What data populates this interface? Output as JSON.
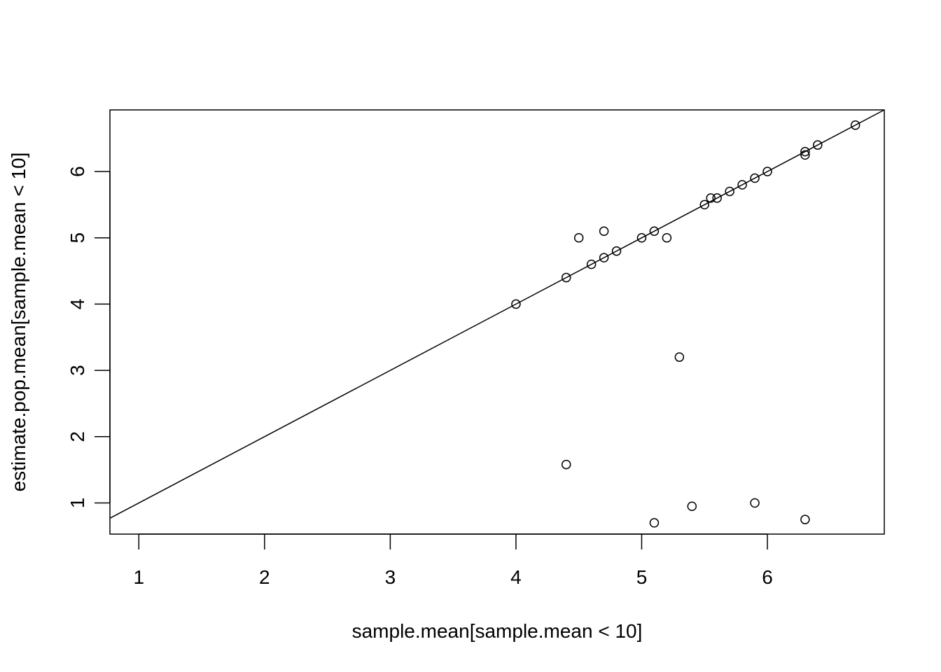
{
  "chart_data": {
    "type": "scatter",
    "title": "",
    "xlabel": "sample.mean[sample.mean < 10]",
    "ylabel": "estimate.pop.mean[sample.mean < 10]",
    "xlim": [
      0.77,
      6.93
    ],
    "ylim": [
      0.53,
      6.93
    ],
    "xticks": [
      1,
      2,
      3,
      4,
      5,
      6
    ],
    "yticks": [
      1,
      2,
      3,
      4,
      5,
      6
    ],
    "grid": false,
    "legend": "none",
    "reference_line": {
      "intercept": 0,
      "slope": 1
    },
    "points": [
      {
        "x": 4.0,
        "y": 4.0
      },
      {
        "x": 4.4,
        "y": 4.4
      },
      {
        "x": 4.5,
        "y": 5.0
      },
      {
        "x": 4.6,
        "y": 4.6
      },
      {
        "x": 4.7,
        "y": 4.7
      },
      {
        "x": 4.7,
        "y": 5.1
      },
      {
        "x": 4.8,
        "y": 4.8
      },
      {
        "x": 5.0,
        "y": 5.0
      },
      {
        "x": 5.1,
        "y": 5.1
      },
      {
        "x": 5.2,
        "y": 5.0
      },
      {
        "x": 5.3,
        "y": 3.2
      },
      {
        "x": 5.5,
        "y": 5.5
      },
      {
        "x": 5.55,
        "y": 5.6
      },
      {
        "x": 5.6,
        "y": 5.6
      },
      {
        "x": 5.7,
        "y": 5.7
      },
      {
        "x": 5.8,
        "y": 5.8
      },
      {
        "x": 5.9,
        "y": 5.9
      },
      {
        "x": 6.0,
        "y": 6.0
      },
      {
        "x": 6.3,
        "y": 6.25
      },
      {
        "x": 6.3,
        "y": 6.3
      },
      {
        "x": 6.4,
        "y": 6.4
      },
      {
        "x": 6.7,
        "y": 6.7
      },
      {
        "x": 4.4,
        "y": 1.58
      },
      {
        "x": 5.1,
        "y": 0.7
      },
      {
        "x": 5.4,
        "y": 0.95
      },
      {
        "x": 5.9,
        "y": 1.0
      },
      {
        "x": 6.3,
        "y": 0.75
      }
    ]
  }
}
